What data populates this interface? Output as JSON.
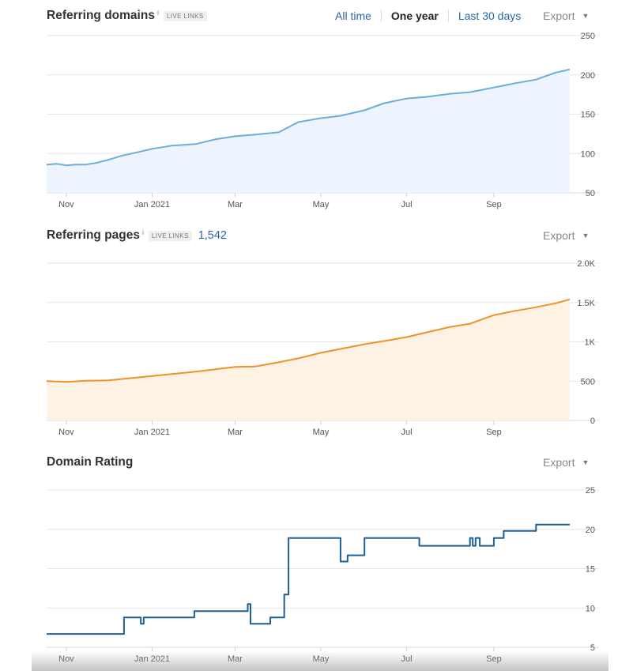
{
  "header": {
    "timeframes": [
      "All time",
      "One year",
      "Last 30 days"
    ],
    "active_timeframe": "One year",
    "export_label": "Export"
  },
  "x_tick_labels": [
    "Nov",
    "Jan 2021",
    "Mar",
    "May",
    "Jul",
    "Sep"
  ],
  "charts": [
    {
      "title": "Referring domains",
      "info": "i",
      "badge": "LIVE LINKS",
      "count": "",
      "color": "#6aaed9",
      "fill": "#edf4fd"
    },
    {
      "title": "Referring pages",
      "info": "i",
      "badge": "LIVE LINKS",
      "count": "1,542",
      "color": "#f09228",
      "fill": "#fef2e4"
    },
    {
      "title": "Domain Rating",
      "info": "",
      "badge": "",
      "count": "",
      "color": "#1e5f96",
      "fill": "none"
    }
  ],
  "chart_data": [
    {
      "type": "area",
      "title": "Referring domains",
      "x_tick_labels": [
        "Nov",
        "Jan 2021",
        "Mar",
        "May",
        "Jul",
        "Sep"
      ],
      "ylim": [
        50,
        250
      ],
      "yticks": [
        50,
        100,
        150,
        200,
        250
      ],
      "ytick_labels": [
        "50",
        "100",
        "150",
        "200",
        "250"
      ],
      "grid": true,
      "series": [
        {
          "x": [
            "2020-10-18",
            "2020-10-25",
            "2020-11-01",
            "2020-11-08",
            "2020-11-15",
            "2020-11-22",
            "2020-12-01",
            "2020-12-10",
            "2020-12-20",
            "2021-01-01",
            "2021-01-15",
            "2021-02-01",
            "2021-02-15",
            "2021-03-01",
            "2021-03-15",
            "2021-04-01",
            "2021-04-15",
            "2021-05-01",
            "2021-05-15",
            "2021-06-01",
            "2021-06-15",
            "2021-07-01",
            "2021-07-15",
            "2021-08-01",
            "2021-08-15",
            "2021-09-01",
            "2021-09-15",
            "2021-10-01",
            "2021-10-15",
            "2021-10-25"
          ],
          "y": [
            86,
            87,
            85,
            86,
            86,
            88,
            92,
            97,
            101,
            106,
            110,
            112,
            118,
            122,
            124,
            127,
            140,
            145,
            148,
            155,
            164,
            170,
            172,
            176,
            178,
            184,
            189,
            194,
            203,
            207
          ]
        }
      ]
    },
    {
      "type": "area",
      "title": "Referring pages",
      "x_tick_labels": [
        "Nov",
        "Jan 2021",
        "Mar",
        "May",
        "Jul",
        "Sep"
      ],
      "ylim": [
        0,
        2000
      ],
      "yticks": [
        0,
        500,
        1000,
        1500,
        2000
      ],
      "ytick_labels": [
        "0",
        "500",
        "1K",
        "1.5K",
        "2.0K"
      ],
      "grid": true,
      "series": [
        {
          "x": [
            "2020-10-18",
            "2020-11-01",
            "2020-11-15",
            "2020-12-01",
            "2020-12-15",
            "2021-01-01",
            "2021-01-15",
            "2021-02-01",
            "2021-02-15",
            "2021-03-01",
            "2021-03-15",
            "2021-04-01",
            "2021-04-15",
            "2021-05-01",
            "2021-05-15",
            "2021-06-01",
            "2021-06-15",
            "2021-07-01",
            "2021-07-15",
            "2021-08-01",
            "2021-08-15",
            "2021-09-01",
            "2021-09-15",
            "2021-10-01",
            "2021-10-15",
            "2021-10-25"
          ],
          "y": [
            500,
            490,
            505,
            510,
            535,
            565,
            590,
            620,
            650,
            680,
            685,
            740,
            790,
            860,
            910,
            970,
            1010,
            1060,
            1120,
            1190,
            1230,
            1340,
            1390,
            1440,
            1490,
            1540
          ]
        }
      ]
    },
    {
      "type": "line",
      "title": "Domain Rating",
      "x_tick_labels": [
        "Nov",
        "Jan 2021",
        "Mar",
        "May",
        "Jul",
        "Sep"
      ],
      "ylim": [
        5,
        25
      ],
      "yticks": [
        5,
        10,
        15,
        20,
        25
      ],
      "ytick_labels": [
        "5",
        "10",
        "15",
        "20",
        "25"
      ],
      "grid": true,
      "series": [
        {
          "x": [
            "2020-10-18",
            "2020-12-12",
            "2020-12-12",
            "2020-12-24",
            "2020-12-24",
            "2020-12-26",
            "2020-12-26",
            "2021-01-31",
            "2021-01-31",
            "2021-03-10",
            "2021-03-10",
            "2021-03-12",
            "2021-03-12",
            "2021-03-26",
            "2021-03-26",
            "2021-04-05",
            "2021-04-05",
            "2021-04-08",
            "2021-04-08",
            "2021-05-15",
            "2021-05-15",
            "2021-05-20",
            "2021-05-20",
            "2021-06-01",
            "2021-06-01",
            "2021-07-10",
            "2021-07-10",
            "2021-08-15",
            "2021-08-15",
            "2021-08-17",
            "2021-08-17",
            "2021-08-19",
            "2021-08-19",
            "2021-08-22",
            "2021-08-22",
            "2021-09-01",
            "2021-09-01",
            "2021-09-08",
            "2021-09-08",
            "2021-10-01",
            "2021-10-01",
            "2021-10-08",
            "2021-10-08",
            "2021-10-25"
          ],
          "y": [
            6.7,
            6.7,
            8.8,
            8.8,
            8,
            8,
            8.8,
            8.8,
            9.6,
            9.6,
            10.5,
            10.5,
            8,
            8,
            8.8,
            8.8,
            11.7,
            11.7,
            18.9,
            18.9,
            15.9,
            15.9,
            16.7,
            16.7,
            18.9,
            18.9,
            17.9,
            17.9,
            18.9,
            18.9,
            17.9,
            17.9,
            18.9,
            18.9,
            17.9,
            17.9,
            18.9,
            18.9,
            19.8,
            19.8,
            20.6,
            20.6,
            20.6,
            20.6
          ]
        }
      ]
    }
  ]
}
